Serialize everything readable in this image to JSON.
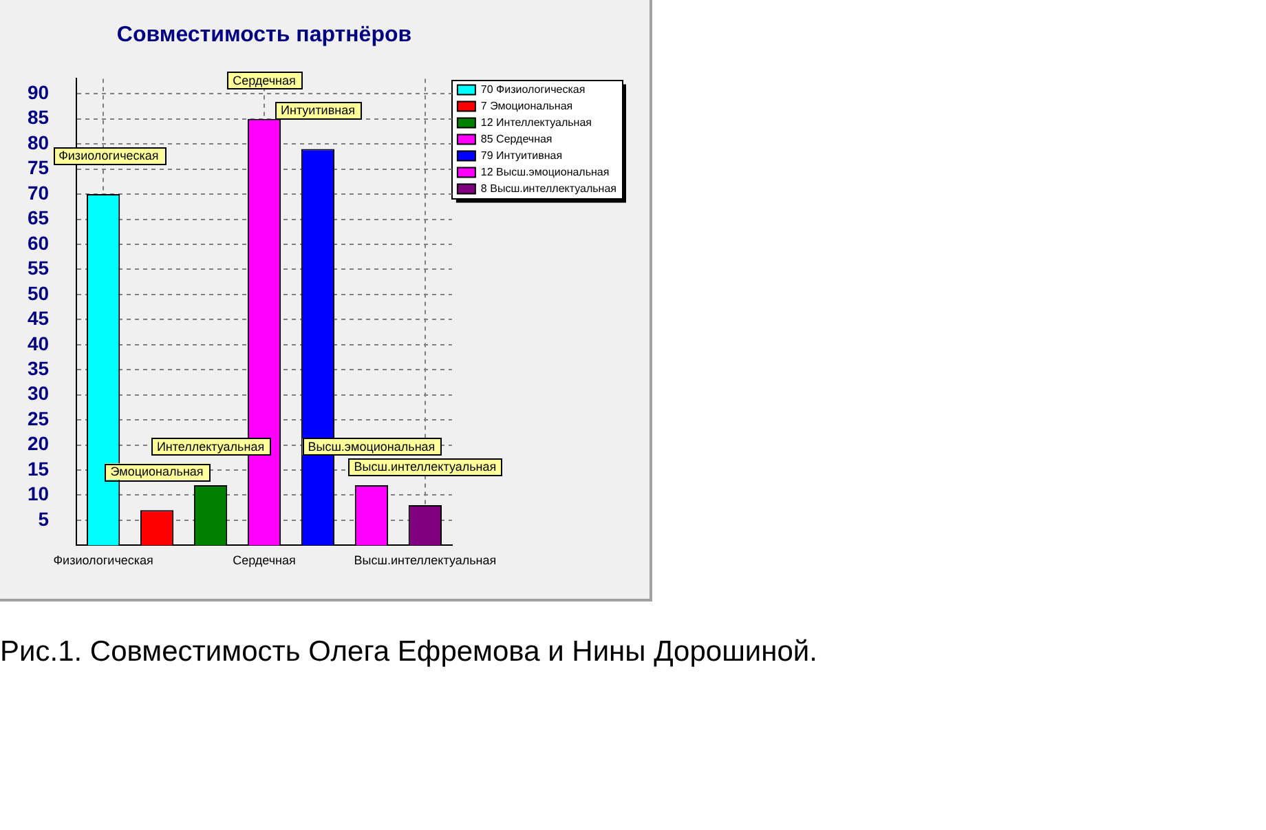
{
  "chart_data": {
    "type": "bar",
    "title": "Совместимость партнёров",
    "categories": [
      "Физиологическая",
      null,
      null,
      "Сердечная",
      null,
      null,
      "Высш.интеллектуальная"
    ],
    "series": [
      {
        "name": "70 Физиологическая",
        "color": "#00ffff",
        "values": [
          70,
          null,
          null,
          null,
          null,
          null,
          null
        ],
        "value_labels": [
          "Физиологическая",
          null,
          null,
          null,
          null,
          null,
          null
        ]
      },
      {
        "name": "7 Эмоциональная",
        "color": "#ff0000",
        "values": [
          null,
          7,
          null,
          null,
          null,
          null,
          null
        ],
        "value_labels": [
          null,
          "Эмоциональная",
          null,
          null,
          null,
          null,
          null
        ]
      },
      {
        "name": "12 Интеллектуальная",
        "color": "#008000",
        "values": [
          null,
          null,
          12,
          null,
          null,
          null,
          null
        ],
        "value_labels": [
          null,
          null,
          "Интеллектуальная",
          null,
          null,
          null,
          null
        ]
      },
      {
        "name": "85 Сердечная",
        "color": "#ff00ff",
        "values": [
          null,
          null,
          null,
          85,
          null,
          null,
          null
        ],
        "value_labels": [
          null,
          null,
          null,
          "Сердечная",
          null,
          null,
          null
        ]
      },
      {
        "name": "79 Интуитивная",
        "color": "#0000ff",
        "values": [
          null,
          null,
          null,
          null,
          79,
          null,
          null
        ],
        "value_labels": [
          null,
          null,
          null,
          null,
          "Интуитивная",
          null,
          null
        ]
      },
      {
        "name": "12 Высш.эмоциональная",
        "color": "#ff00ff",
        "values": [
          null,
          null,
          null,
          null,
          null,
          12,
          null
        ],
        "value_labels": [
          null,
          null,
          null,
          null,
          null,
          "Высш.эмоциональная",
          null
        ]
      },
      {
        "name": "8 Высш.интеллектуальная",
        "color": "#800080",
        "values": [
          null,
          null,
          null,
          null,
          null,
          null,
          8
        ],
        "value_labels": [
          null,
          null,
          null,
          null,
          null,
          null,
          "Высш.интеллектуальная"
        ]
      }
    ],
    "ylim": [
      0,
      93
    ],
    "yticks": [
      5,
      10,
      15,
      20,
      25,
      30,
      35,
      40,
      45,
      50,
      55,
      60,
      65,
      70,
      75,
      80,
      85,
      90
    ],
    "grid": true,
    "legend": "top right",
    "annotations": [
      "Рис.1. Совместимость Олега Ефремова и Нины Дорошиной."
    ]
  }
}
